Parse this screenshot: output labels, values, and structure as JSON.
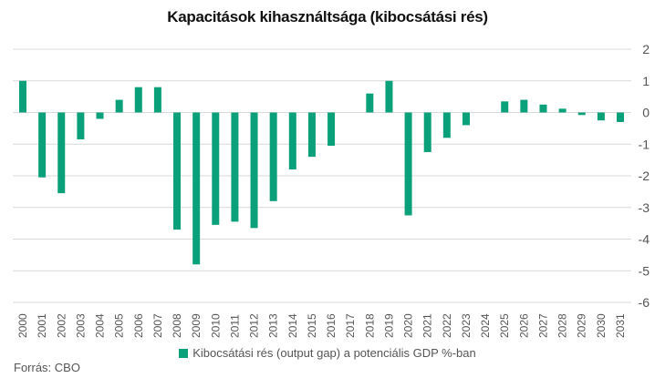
{
  "chart_data": {
    "type": "bar",
    "title": "Kapacitások kihasználtsága (kibocsátási rés)",
    "categories": [
      "2000",
      "2001",
      "2002",
      "2003",
      "2004",
      "2005",
      "2006",
      "2007",
      "2008",
      "2009",
      "2010",
      "2011",
      "2012",
      "2013",
      "2014",
      "2015",
      "2016",
      "2017",
      "2018",
      "2019",
      "2020",
      "2021",
      "2022",
      "2023",
      "2024",
      "2025",
      "2026",
      "2027",
      "2028",
      "2029",
      "2030",
      "2031"
    ],
    "series": [
      {
        "name": "Kibocsátási rés (output gap) a potenciális GDP %-ban",
        "values": [
          1.0,
          -2.05,
          -2.55,
          -0.85,
          -0.2,
          0.4,
          0.8,
          0.8,
          -3.7,
          -4.8,
          -3.55,
          -3.45,
          -3.65,
          -2.8,
          -1.8,
          -1.4,
          -1.05,
          0.0,
          0.6,
          1.0,
          -3.25,
          -1.25,
          -0.8,
          -0.4,
          0.0,
          0.35,
          0.4,
          0.25,
          0.12,
          -0.08,
          -0.25,
          -0.3
        ]
      }
    ],
    "ylim": [
      -6,
      2
    ],
    "yticks": [
      2,
      1,
      0,
      -1,
      -2,
      -3,
      -4,
      -5,
      -6
    ],
    "grid": true,
    "legend_position": "bottom",
    "colors": {
      "bar": "#0aa079",
      "grid": "#d9d9d9"
    }
  },
  "source": "Forrás: CBO"
}
